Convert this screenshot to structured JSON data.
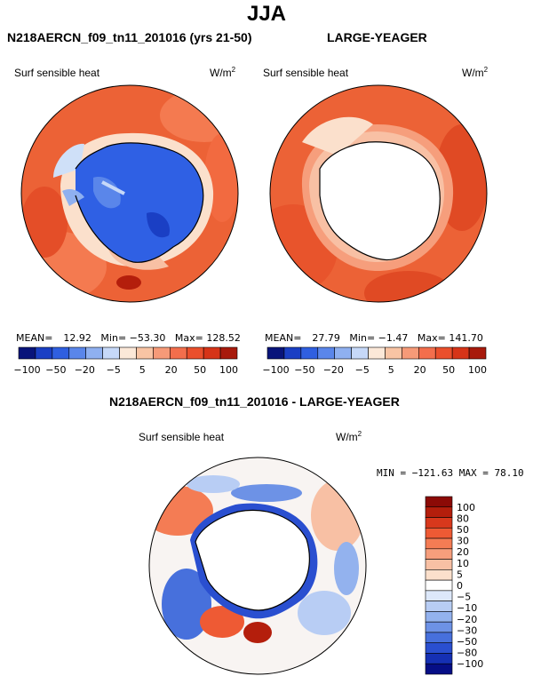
{
  "chart_data": {
    "type": "heatmap",
    "title": "JJA",
    "projection": "south polar stereographic",
    "panels": [
      {
        "name": "model",
        "title": "N218AERCN_f09_tn11_201016 (yrs 21-50)",
        "variable": "Surf sensible heat",
        "units_base": "W/m",
        "units_exp": "2",
        "stats": {
          "mean_label": "MEAN=",
          "mean": "12.92",
          "min_label": "Min=",
          "min": "−53.30",
          "max_label": "Max=",
          "max": "128.52"
        }
      },
      {
        "name": "obs",
        "title": "LARGE-YEAGER",
        "variable": "Surf sensible heat",
        "units_base": "W/m",
        "units_exp": "2",
        "stats": {
          "mean_label": "MEAN=",
          "mean": "27.79",
          "min_label": "Min=",
          "min": "−1.47",
          "max_label": "Max=",
          "max": "141.70"
        }
      },
      {
        "name": "difference",
        "title": "N218AERCN_f09_tn11_201016 - LARGE-YEAGER",
        "variable": "Surf sensible heat",
        "units_base": "W/m",
        "units_exp": "2",
        "stats": {
          "min_label": "MIN =",
          "min": "−121.63",
          "max_label": "MAX =",
          "max": "78.10"
        }
      }
    ],
    "colorbar_horizontal": {
      "tick_labels": [
        "−100",
        "−50",
        "−20",
        "−5",
        "5",
        "20",
        "50",
        "100"
      ],
      "colors": [
        "#08147a",
        "#1a3fc4",
        "#2f5fe0",
        "#5a86ea",
        "#8fb0f0",
        "#c6d8f8",
        "#fbe8d8",
        "#f8c4a4",
        "#f69a78",
        "#f36e4c",
        "#ea4f2c",
        "#d63418",
        "#a81a0c"
      ]
    },
    "colorbar_vertical": {
      "tick_labels": [
        "100",
        "80",
        "50",
        "30",
        "20",
        "10",
        "5",
        "0",
        "−5",
        "−10",
        "−20",
        "−30",
        "−50",
        "−80",
        "−100"
      ],
      "colors": [
        "#8c0a06",
        "#b41e0c",
        "#d8381c",
        "#ee5a34",
        "#f47c54",
        "#f69e7c",
        "#f8c0a4",
        "#fbe0cc",
        "#ffffff",
        "#dde8fa",
        "#b8cdf4",
        "#93b2ee",
        "#6d92e6",
        "#4770dc",
        "#2a4fd0",
        "#1530b4",
        "#060e86"
      ]
    }
  },
  "fields": {
    "land": "#ffffff",
    "model_base": "#ea5a30",
    "model_ice": "#2f60e4",
    "obs_base": "#ec6034",
    "diff_base": "#f8f4f2",
    "coast": "#000000"
  }
}
